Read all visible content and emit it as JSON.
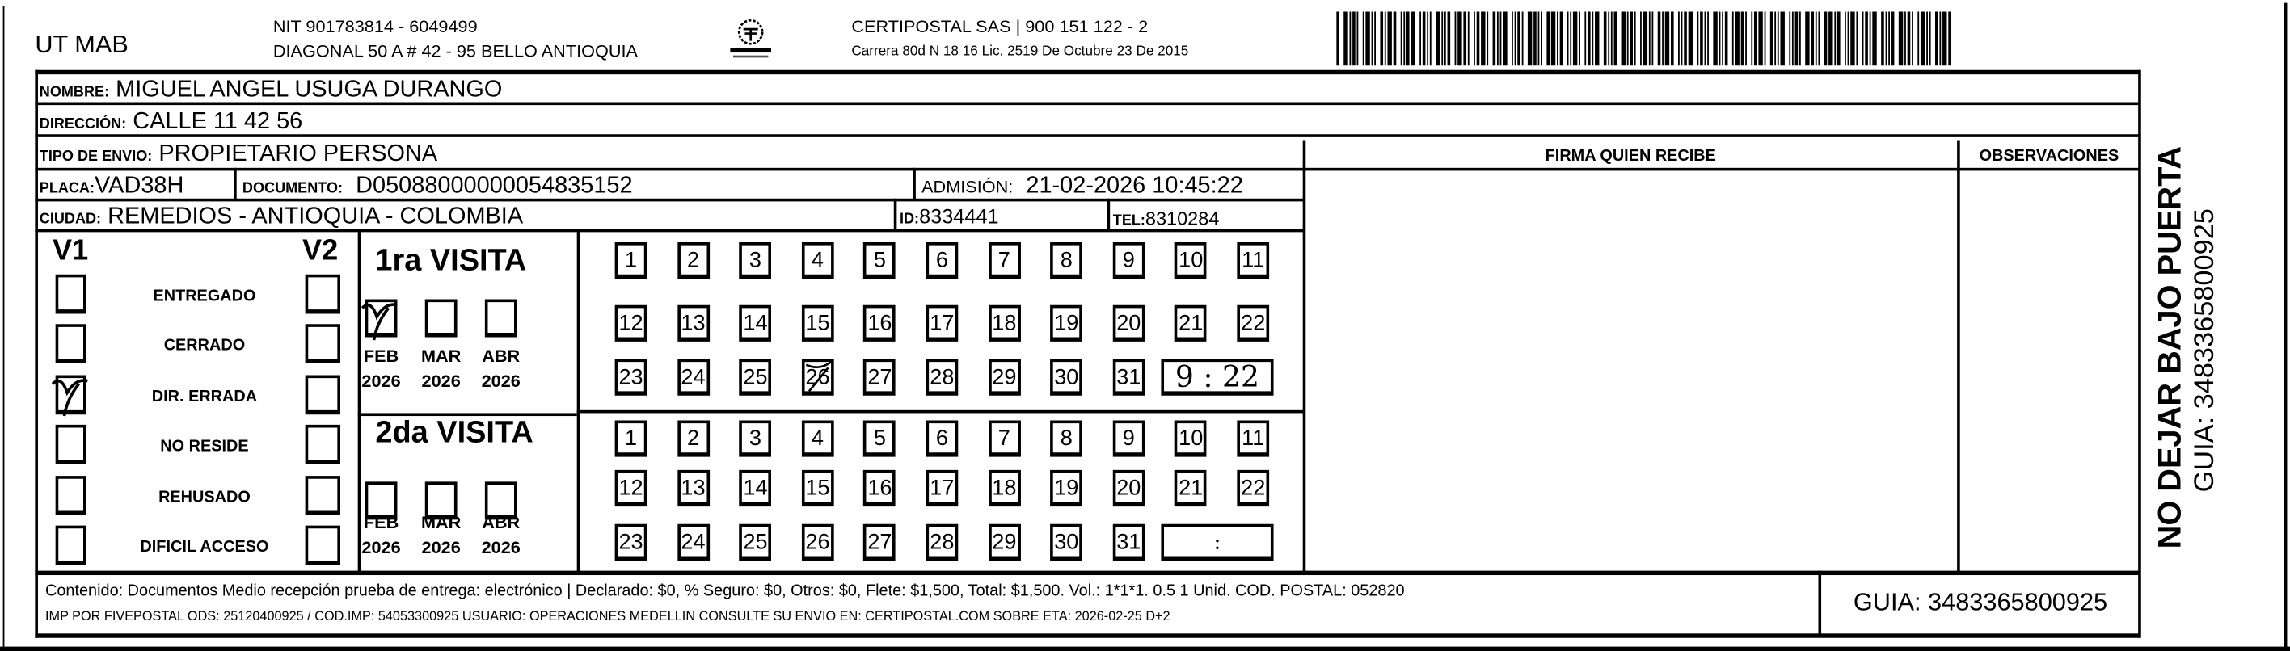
{
  "header": {
    "sender": "UT MAB",
    "nit": "NIT 901783814 - 6049499",
    "sender_address": "DIAGONAL 50 A # 42 - 95  BELLO  ANTIOQUIA",
    "logo_text": "CERTIPOSTAL",
    "carrier": "CERTIPOSTAL SAS | 900 151 122 - 2",
    "carrier_license": "Carrera 80d N 18 16  Lic. 2519 De Octubre 23 De 2015"
  },
  "recipient": {
    "nombre_label": "NOMBRE:",
    "nombre": "MIGUEL ANGEL USUGA DURANGO",
    "direccion_label": "DIRECCIÓN:",
    "direccion": "CALLE 11 42 56",
    "tipo_label": "TIPO DE ENVIO:",
    "tipo": "PROPIETARIO PERSONA",
    "placa_label": "PLACA:",
    "placa": "VAD38H",
    "documento_label": "DOCUMENTO:",
    "documento": "D05088000000054835152",
    "admision_label": "ADMISIÓN:",
    "admision": "21-02-2026 10:45:22",
    "ciudad_label": "CIUDAD:",
    "ciudad": "REMEDIOS - ANTIOQUIA - COLOMBIA",
    "id_label": "ID:",
    "id": "8334441",
    "tel_label": "TEL:",
    "tel": "8310284"
  },
  "signature": {
    "firma_label": "FIRMA QUIEN RECIBE",
    "observaciones_label": "OBSERVACIONES"
  },
  "status": {
    "v1_label": "V1",
    "v2_label": "V2",
    "options": [
      {
        "label": "ENTREGADO",
        "v1": false,
        "v2": false
      },
      {
        "label": "CERRADO",
        "v1": false,
        "v2": false
      },
      {
        "label": "DIR. ERRADA",
        "v1": true,
        "v2": false
      },
      {
        "label": "NO RESIDE",
        "v1": false,
        "v2": false
      },
      {
        "label": "REHUSADO",
        "v1": false,
        "v2": false
      },
      {
        "label": "DIFICIL ACCESO",
        "v1": false,
        "v2": false
      }
    ]
  },
  "visits": [
    {
      "title": "1ra VISITA",
      "months": [
        {
          "m": "FEB",
          "y": "2026",
          "checked": true
        },
        {
          "m": "MAR",
          "y": "2026",
          "checked": false
        },
        {
          "m": "ABR",
          "y": "2026",
          "checked": false
        }
      ],
      "marked_day": "26",
      "time": "9 : 22"
    },
    {
      "title": "2da VISITA",
      "months": [
        {
          "m": "FEB",
          "y": "2026",
          "checked": false
        },
        {
          "m": "MAR",
          "y": "2026",
          "checked": false
        },
        {
          "m": "ABR",
          "y": "2026",
          "checked": false
        }
      ],
      "marked_day": "",
      "time": ":"
    }
  ],
  "days": [
    "1",
    "2",
    "3",
    "4",
    "5",
    "6",
    "7",
    "8",
    "9",
    "10",
    "11",
    "12",
    "13",
    "14",
    "15",
    "16",
    "17",
    "18",
    "19",
    "20",
    "21",
    "22",
    "23",
    "24",
    "25",
    "26",
    "27",
    "28",
    "29",
    "30",
    "31"
  ],
  "footer": {
    "content": "Contenido: Documentos Medio recepción prueba de entrega: electrónico | Declarado: $0, % Seguro: $0, Otros: $0, Flete: $1,500, Total: $1,500. Vol.: 1*1*1. 0.5  1 Unid. COD. POSTAL: 052820",
    "imp": "IMP POR FIVEPOSTAL ODS: 25120400925 / COD.IMP: 54053300925 USUARIO: OPERACIONES MEDELLIN CONSULTE SU ENVIO EN: CERTIPOSTAL.COM SOBRE ETA: 2026-02-25 D+2",
    "guia": "GUIA: 3483365800925"
  },
  "side": {
    "warning": "NO DEJAR BAJO PUERTA",
    "guia": "GUIA: 3483365800925"
  }
}
